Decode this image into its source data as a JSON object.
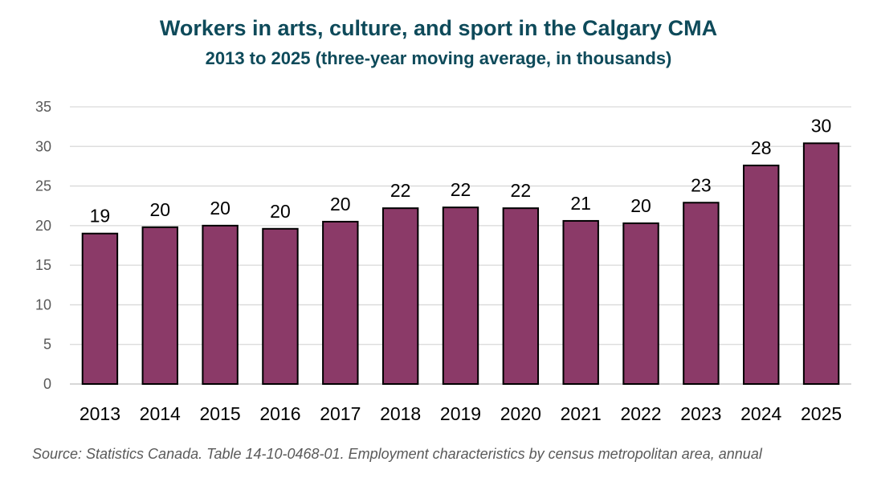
{
  "header": {
    "title": "Workers in arts, culture, and sport in the Calgary CMA",
    "subtitle": "2013 to 2025 (three-year moving average, in thousands)"
  },
  "source": "Source: Statistics Canada. Table 14-10-0468-01. Employment characteristics by census metropolitan area, annual",
  "chart_data": {
    "type": "bar",
    "title": "Workers in arts, culture, and sport in the Calgary CMA",
    "subtitle": "2013 to 2025 (three-year moving average, in thousands)",
    "categories": [
      "2013",
      "2014",
      "2015",
      "2016",
      "2017",
      "2018",
      "2019",
      "2020",
      "2021",
      "2022",
      "2023",
      "2024",
      "2025"
    ],
    "values": [
      19.0,
      19.8,
      20.0,
      19.6,
      20.5,
      22.2,
      22.3,
      22.2,
      20.6,
      20.3,
      22.9,
      27.6,
      30.4
    ],
    "data_labels": [
      "19",
      "20",
      "20",
      "20",
      "20",
      "22",
      "22",
      "22",
      "21",
      "20",
      "23",
      "28",
      "30"
    ],
    "yticks": [
      0,
      5,
      10,
      15,
      20,
      25,
      30,
      35
    ],
    "ylim": [
      0,
      35
    ],
    "xlabel": "",
    "ylabel": "",
    "grid": true,
    "legend": "none",
    "colors": {
      "bar": "#8b3a68",
      "bar_border": "#000000",
      "grid": "#d9d9d9",
      "title": "#0e4a5a"
    }
  }
}
